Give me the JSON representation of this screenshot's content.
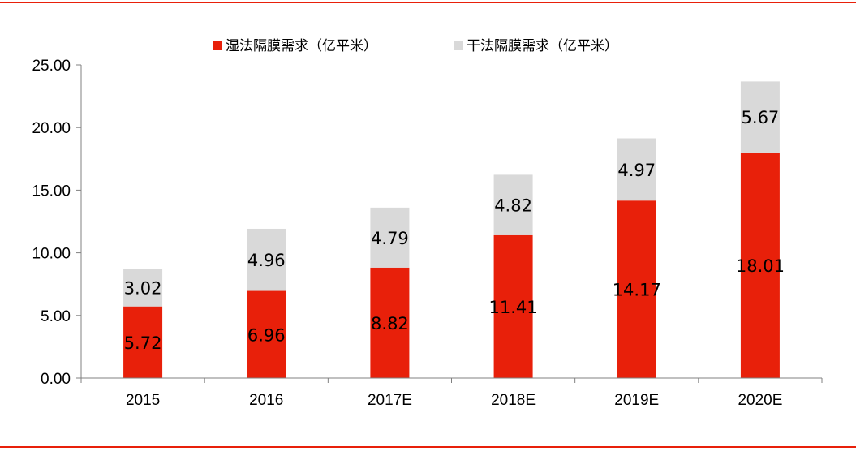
{
  "chart_data": {
    "type": "bar",
    "stacked": true,
    "categories": [
      "2015",
      "2016",
      "2017E",
      "2018E",
      "2019E",
      "2020E"
    ],
    "series": [
      {
        "name": "湿法隔膜需求（亿平米）",
        "values": [
          5.72,
          6.96,
          8.82,
          11.41,
          14.17,
          18.01
        ],
        "color": "#e8200a"
      },
      {
        "name": "干法隔膜需求（亿平米）",
        "values": [
          3.02,
          4.96,
          4.79,
          4.82,
          4.97,
          5.67
        ],
        "color": "#d9d9d9"
      }
    ],
    "ylim": [
      0,
      25
    ],
    "yticks": [
      "0.00",
      "5.00",
      "10.00",
      "15.00",
      "20.00",
      "25.00"
    ],
    "legend": "top-center",
    "grid": false
  },
  "colors": {
    "accent_rule": "#e8200a",
    "axis": "#808080"
  }
}
